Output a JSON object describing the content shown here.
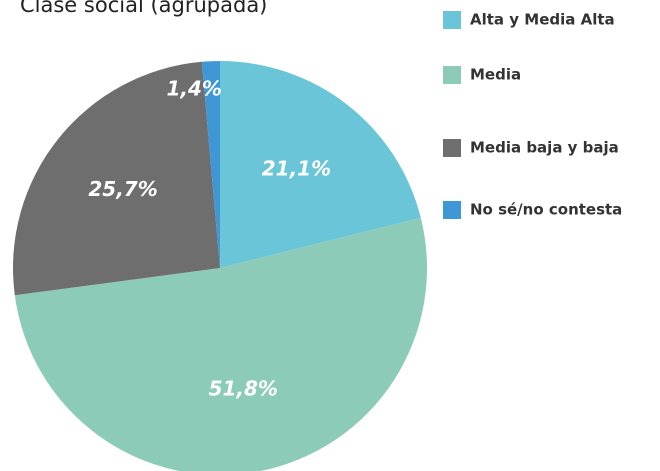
{
  "chart_data": {
    "type": "pie",
    "title": "Clase social (agrupada)",
    "categories": [
      "Alta y Media Alta",
      "Media",
      "Media baja y baja",
      "No sé/no contesta"
    ],
    "values": [
      21.1,
      51.8,
      25.7,
      1.4
    ],
    "value_labels": [
      "21,1%",
      "51,8%",
      "25,7%",
      "1,4%"
    ],
    "colors": [
      "#6bc5d9",
      "#8ccbb7",
      "#6e6e6e",
      "#3f97d6"
    ],
    "legend": "right"
  }
}
